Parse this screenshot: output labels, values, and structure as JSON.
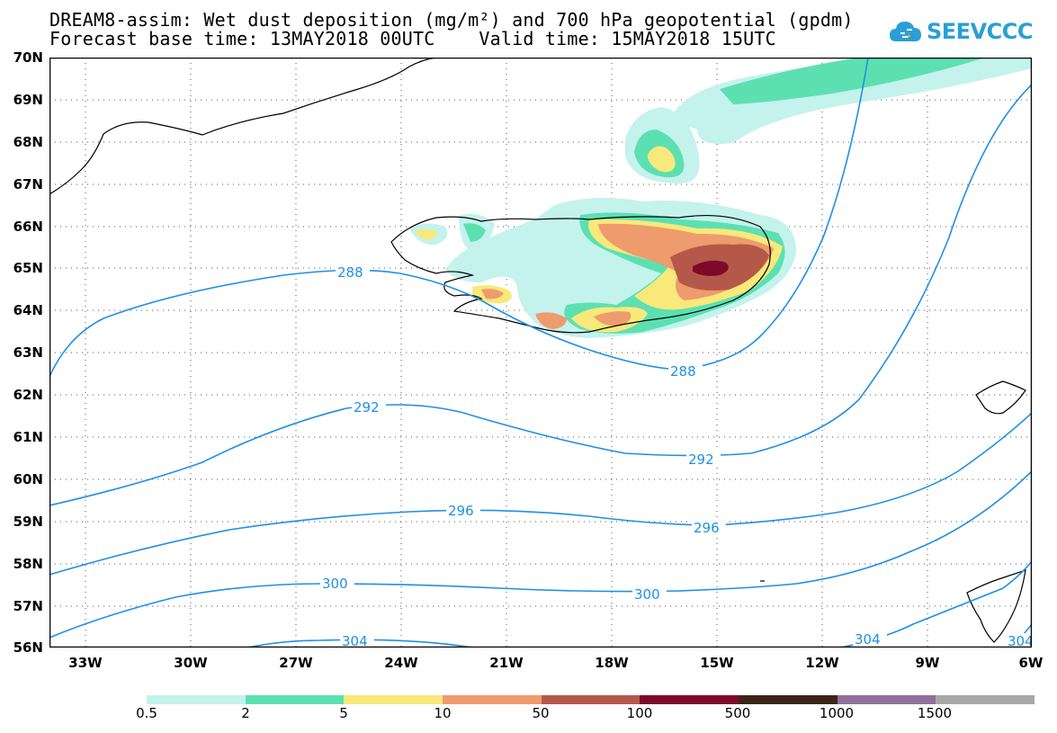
{
  "header": {
    "title_line1": "DREAM8-assim: Wet dust deposition (mg/m²) and 700 hPa geopotential (gpdm)",
    "title_line2": "Forecast base time: 13MAY2018 00UTC    Valid time: 15MAY2018 15UTC"
  },
  "logo": {
    "text": "SEEVCCC",
    "icon": "cloud-icon",
    "color": "#2a9fd6"
  },
  "map": {
    "lat_labels": [
      "70N",
      "69N",
      "68N",
      "67N",
      "66N",
      "65N",
      "64N",
      "63N",
      "62N",
      "61N",
      "60N",
      "59N",
      "58N",
      "57N",
      "56N"
    ],
    "lon_labels": [
      "33W",
      "30W",
      "27W",
      "24W",
      "21W",
      "18W",
      "15W",
      "12W",
      "9W",
      "6W"
    ],
    "contour_labels": [
      "288",
      "288",
      "292",
      "292",
      "296",
      "296",
      "300",
      "300",
      "304",
      "304",
      "304"
    ],
    "contour_color": "#1e90e6"
  },
  "legend": {
    "colors": [
      "#c4f2ec",
      "#5ce0b2",
      "#f8e97a",
      "#ee9b6e",
      "#b4594a",
      "#7e0a2a",
      "#3b2418",
      "#8f6f9c",
      "#a8a8a8"
    ],
    "labels": [
      "0.5",
      "2",
      "5",
      "10",
      "50",
      "100",
      "500",
      "1000",
      "1500"
    ]
  }
}
